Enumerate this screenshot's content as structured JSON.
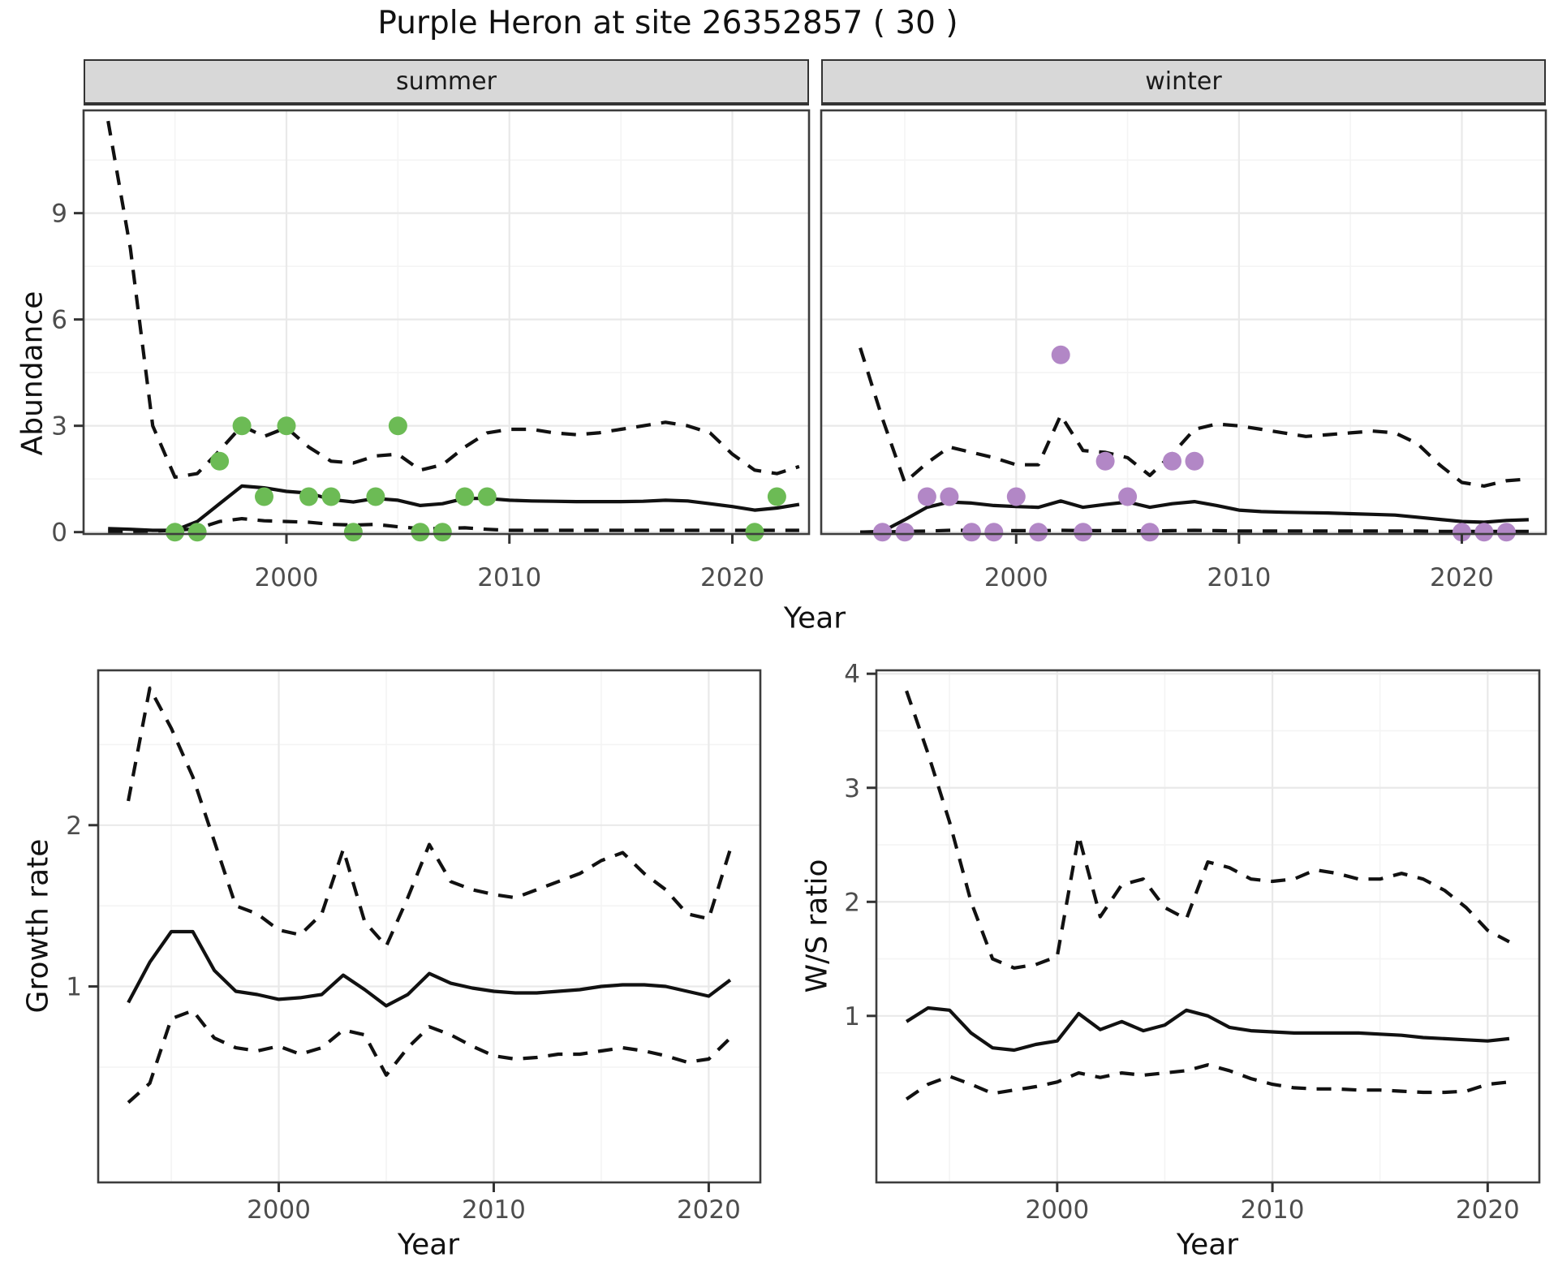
{
  "title": "Purple Heron at site 26352857 ( 30 )",
  "top_row": {
    "ylabel": "Abundance",
    "xlabel": "Year"
  },
  "colors": {
    "summer_points": "#6CBB55",
    "winter_points": "#B287C6",
    "trend_line": "#111111",
    "ci_line": "#111111",
    "strip_bg": "#d8d8d8",
    "grid_major": "#e9e9e9",
    "grid_minor": "#f4f4f4",
    "panel_border": "#3d3d3d",
    "tick_text": "#4d4d4d"
  },
  "chart_data": [
    {
      "id": "summer",
      "type": "line",
      "facet_label": "summer",
      "xlabel": "Year",
      "ylabel": "Abundance",
      "xlim": [
        1990.9,
        2023.44
      ],
      "ylim": [
        -0.053,
        11.9
      ],
      "x_ticks": [
        2000,
        2010,
        2020
      ],
      "x_minor": [
        1995,
        2005,
        2015
      ],
      "y_ticks": [
        0,
        3,
        6,
        9
      ],
      "y_minor": [
        1.5,
        4.5,
        7.5,
        10.5
      ],
      "show_y_labels": true,
      "series": [
        {
          "name": "upper_ci",
          "style": "dashed",
          "x": [
            1992,
            1993,
            1994,
            1995,
            1996,
            1997,
            1998,
            1999,
            2000,
            2001,
            2002,
            2003,
            2004,
            2005,
            2006,
            2007,
            2008,
            2009,
            2010,
            2011,
            2012,
            2013,
            2014,
            2015,
            2016,
            2017,
            2018,
            2019,
            2020,
            2021,
            2022,
            2023
          ],
          "y": [
            11.6,
            8.0,
            3.0,
            1.55,
            1.65,
            2.3,
            3.0,
            2.7,
            2.95,
            2.4,
            2.0,
            1.95,
            2.15,
            2.2,
            1.75,
            1.9,
            2.4,
            2.8,
            2.9,
            2.9,
            2.8,
            2.75,
            2.8,
            2.9,
            3.0,
            3.1,
            3.0,
            2.8,
            2.2,
            1.75,
            1.65,
            1.85
          ]
        },
        {
          "name": "trend",
          "style": "solid",
          "x": [
            1992,
            1993,
            1994,
            1995,
            1996,
            1997,
            1998,
            1999,
            2000,
            2001,
            2002,
            2003,
            2004,
            2005,
            2006,
            2007,
            2008,
            2009,
            2010,
            2011,
            2012,
            2013,
            2014,
            2015,
            2016,
            2017,
            2018,
            2019,
            2020,
            2021,
            2022,
            2023
          ],
          "y": [
            0.1,
            0.08,
            0.05,
            0.05,
            0.3,
            0.8,
            1.3,
            1.25,
            1.15,
            1.1,
            0.92,
            0.85,
            0.95,
            0.9,
            0.75,
            0.8,
            0.95,
            0.95,
            0.9,
            0.88,
            0.87,
            0.86,
            0.86,
            0.86,
            0.87,
            0.9,
            0.88,
            0.8,
            0.72,
            0.62,
            0.68,
            0.78
          ]
        },
        {
          "name": "lower_ci",
          "style": "dashed",
          "x": [
            1992,
            1993,
            1994,
            1995,
            1996,
            1997,
            1998,
            1999,
            2000,
            2001,
            2002,
            2003,
            2004,
            2005,
            2006,
            2007,
            2008,
            2009,
            2010,
            2011,
            2012,
            2013,
            2014,
            2015,
            2016,
            2017,
            2018,
            2019,
            2020,
            2021,
            2022,
            2023
          ],
          "y": [
            0.02,
            0.02,
            0.03,
            0.05,
            0.1,
            0.3,
            0.38,
            0.32,
            0.3,
            0.28,
            0.22,
            0.2,
            0.22,
            0.15,
            0.1,
            0.1,
            0.12,
            0.08,
            0.05,
            0.05,
            0.05,
            0.05,
            0.05,
            0.05,
            0.05,
            0.05,
            0.05,
            0.05,
            0.05,
            0.05,
            0.05,
            0.05
          ]
        }
      ],
      "points": {
        "color": "#6CBB55",
        "x": [
          1995,
          1996,
          1997,
          1998,
          1999,
          2000,
          2001,
          2002,
          2003,
          2004,
          2005,
          2006,
          2007,
          2008,
          2009,
          2021,
          2022
        ],
        "y": [
          0,
          0,
          2,
          3,
          1,
          3,
          1,
          1,
          0,
          1,
          3,
          0,
          0,
          1,
          1,
          0,
          1
        ]
      }
    },
    {
      "id": "winter",
      "type": "line",
      "facet_label": "winter",
      "xlabel": "Year",
      "ylabel": "Abundance",
      "xlim": [
        1991.25,
        2023.77
      ],
      "ylim": [
        -0.053,
        11.9
      ],
      "x_ticks": [
        2000,
        2010,
        2020
      ],
      "x_minor": [
        1995,
        2005,
        2015
      ],
      "y_ticks": [
        0,
        3,
        6,
        9
      ],
      "y_minor": [
        1.5,
        4.5,
        7.5,
        10.5
      ],
      "show_y_labels": false,
      "series": [
        {
          "name": "upper_ci",
          "style": "dashed",
          "x": [
            1993,
            1994,
            1995,
            1996,
            1997,
            1998,
            1999,
            2000,
            2001,
            2002,
            2003,
            2004,
            2005,
            2006,
            2007,
            2008,
            2009,
            2010,
            2011,
            2012,
            2013,
            2014,
            2015,
            2016,
            2017,
            2018,
            2019,
            2020,
            2021,
            2022,
            2023
          ],
          "y": [
            5.2,
            3.2,
            1.4,
            1.95,
            2.4,
            2.25,
            2.1,
            1.9,
            1.9,
            3.3,
            2.3,
            2.25,
            2.1,
            1.6,
            2.2,
            2.9,
            3.05,
            3.0,
            2.9,
            2.8,
            2.7,
            2.75,
            2.8,
            2.85,
            2.8,
            2.5,
            1.9,
            1.4,
            1.3,
            1.45,
            1.5
          ]
        },
        {
          "name": "trend",
          "style": "solid",
          "x": [
            1993,
            1994,
            1995,
            1996,
            1997,
            1998,
            1999,
            2000,
            2001,
            2002,
            2003,
            2004,
            2005,
            2006,
            2007,
            2008,
            2009,
            2010,
            2011,
            2012,
            2013,
            2014,
            2015,
            2016,
            2017,
            2018,
            2019,
            2020,
            2021,
            2022,
            2023
          ],
          "y": [
            0.0,
            0.02,
            0.35,
            0.7,
            0.85,
            0.82,
            0.75,
            0.72,
            0.7,
            0.88,
            0.7,
            0.78,
            0.85,
            0.7,
            0.8,
            0.86,
            0.75,
            0.62,
            0.58,
            0.56,
            0.55,
            0.54,
            0.52,
            0.5,
            0.48,
            0.42,
            0.36,
            0.3,
            0.28,
            0.33,
            0.35
          ]
        },
        {
          "name": "lower_ci",
          "style": "dashed",
          "x": [
            1993,
            1994,
            1995,
            1996,
            1997,
            1998,
            1999,
            2000,
            2001,
            2002,
            2003,
            2004,
            2005,
            2006,
            2007,
            2008,
            2009,
            2010,
            2011,
            2012,
            2013,
            2014,
            2015,
            2016,
            2017,
            2018,
            2019,
            2020,
            2021,
            2022,
            2023
          ],
          "y": [
            0.0,
            0.0,
            0.02,
            0.03,
            0.05,
            0.05,
            0.04,
            0.04,
            0.04,
            0.05,
            0.04,
            0.04,
            0.04,
            0.03,
            0.04,
            0.05,
            0.04,
            0.03,
            0.03,
            0.03,
            0.03,
            0.03,
            0.03,
            0.03,
            0.03,
            0.03,
            0.02,
            0.02,
            0.02,
            0.02,
            0.02
          ]
        }
      ],
      "points": {
        "color": "#B287C6",
        "x": [
          1994,
          1995,
          1996,
          1997,
          1998,
          1999,
          2000,
          2001,
          2002,
          2003,
          2004,
          2005,
          2006,
          2007,
          2008,
          2020,
          2021,
          2022
        ],
        "y": [
          0,
          0,
          1,
          1,
          0,
          0,
          1,
          0,
          5,
          0,
          2,
          1,
          0,
          2,
          2,
          0,
          0,
          0
        ]
      }
    },
    {
      "id": "growth",
      "type": "line",
      "facet_label": "",
      "xlabel": "Year",
      "ylabel": "Growth rate",
      "xlim": [
        1991.6,
        2022.4
      ],
      "ylim": [
        -0.215,
        2.96
      ],
      "x_ticks": [
        2000,
        2010,
        2020
      ],
      "x_minor": [
        1995,
        2005,
        2015
      ],
      "y_ticks": [
        1,
        2
      ],
      "y_minor": [
        0.5,
        1.5,
        2.5
      ],
      "show_y_labels": true,
      "series": [
        {
          "name": "upper_ci",
          "style": "dashed",
          "x": [
            1993,
            1994,
            1995,
            1996,
            1997,
            1998,
            1999,
            2000,
            2001,
            2002,
            2003,
            2004,
            2005,
            2006,
            2007,
            2008,
            2009,
            2010,
            2011,
            2012,
            2013,
            2014,
            2015,
            2016,
            2017,
            2018,
            2019,
            2020,
            2021
          ],
          "y": [
            2.15,
            2.85,
            2.6,
            2.3,
            1.9,
            1.5,
            1.45,
            1.35,
            1.32,
            1.45,
            1.85,
            1.4,
            1.25,
            1.55,
            1.88,
            1.65,
            1.6,
            1.57,
            1.55,
            1.6,
            1.65,
            1.7,
            1.78,
            1.83,
            1.7,
            1.6,
            1.45,
            1.42,
            1.85
          ]
        },
        {
          "name": "trend",
          "style": "solid",
          "x": [
            1993,
            1994,
            1995,
            1996,
            1997,
            1998,
            1999,
            2000,
            2001,
            2002,
            2003,
            2004,
            2005,
            2006,
            2007,
            2008,
            2009,
            2010,
            2011,
            2012,
            2013,
            2014,
            2015,
            2016,
            2017,
            2018,
            2019,
            2020,
            2021
          ],
          "y": [
            0.9,
            1.15,
            1.34,
            1.34,
            1.1,
            0.97,
            0.95,
            0.92,
            0.93,
            0.95,
            1.07,
            0.98,
            0.88,
            0.95,
            1.08,
            1.02,
            0.99,
            0.97,
            0.96,
            0.96,
            0.97,
            0.98,
            1.0,
            1.01,
            1.01,
            1.0,
            0.97,
            0.94,
            1.04
          ]
        },
        {
          "name": "lower_ci",
          "style": "dashed",
          "x": [
            1993,
            1994,
            1995,
            1996,
            1997,
            1998,
            1999,
            2000,
            2001,
            2002,
            2003,
            2004,
            2005,
            2006,
            2007,
            2008,
            2009,
            2010,
            2011,
            2012,
            2013,
            2014,
            2015,
            2016,
            2017,
            2018,
            2019,
            2020,
            2021
          ],
          "y": [
            0.28,
            0.4,
            0.8,
            0.85,
            0.68,
            0.62,
            0.6,
            0.63,
            0.58,
            0.62,
            0.73,
            0.7,
            0.45,
            0.62,
            0.75,
            0.7,
            0.63,
            0.57,
            0.55,
            0.56,
            0.58,
            0.58,
            0.6,
            0.62,
            0.6,
            0.57,
            0.53,
            0.55,
            0.68
          ]
        }
      ]
    },
    {
      "id": "ws_ratio",
      "type": "line",
      "facet_label": "",
      "xlabel": "Year",
      "ylabel": "W/S ratio",
      "xlim": [
        1991.6,
        2022.4
      ],
      "ylim": [
        -0.46,
        4.03
      ],
      "x_ticks": [
        2000,
        2010,
        2020
      ],
      "x_minor": [
        1995,
        2005,
        2015
      ],
      "y_ticks": [
        1,
        2,
        3,
        4
      ],
      "y_minor": [
        0.5,
        1.5,
        2.5,
        3.5
      ],
      "show_y_labels": true,
      "series": [
        {
          "name": "upper_ci",
          "style": "dashed",
          "x": [
            1993,
            1994,
            1995,
            1996,
            1997,
            1998,
            1999,
            2000,
            2001,
            2002,
            2003,
            2004,
            2005,
            2006,
            2007,
            2008,
            2009,
            2010,
            2011,
            2012,
            2013,
            2014,
            2015,
            2016,
            2017,
            2018,
            2019,
            2020,
            2021
          ],
          "y": [
            3.85,
            3.3,
            2.7,
            2.0,
            1.5,
            1.42,
            1.45,
            1.52,
            2.58,
            1.87,
            2.15,
            2.2,
            1.95,
            1.85,
            2.35,
            2.3,
            2.2,
            2.18,
            2.2,
            2.28,
            2.25,
            2.2,
            2.2,
            2.25,
            2.2,
            2.1,
            1.95,
            1.75,
            1.65
          ]
        },
        {
          "name": "trend",
          "style": "solid",
          "x": [
            1993,
            1994,
            1995,
            1996,
            1997,
            1998,
            1999,
            2000,
            2001,
            2002,
            2003,
            2004,
            2005,
            2006,
            2007,
            2008,
            2009,
            2010,
            2011,
            2012,
            2013,
            2014,
            2015,
            2016,
            2017,
            2018,
            2019,
            2020,
            2021
          ],
          "y": [
            0.95,
            1.07,
            1.05,
            0.85,
            0.72,
            0.7,
            0.75,
            0.78,
            1.02,
            0.88,
            0.95,
            0.87,
            0.92,
            1.05,
            1.0,
            0.9,
            0.87,
            0.86,
            0.85,
            0.85,
            0.85,
            0.85,
            0.84,
            0.83,
            0.81,
            0.8,
            0.79,
            0.78,
            0.8
          ]
        },
        {
          "name": "lower_ci",
          "style": "dashed",
          "x": [
            1993,
            1994,
            1995,
            1996,
            1997,
            1998,
            1999,
            2000,
            2001,
            2002,
            2003,
            2004,
            2005,
            2006,
            2007,
            2008,
            2009,
            2010,
            2011,
            2012,
            2013,
            2014,
            2015,
            2016,
            2017,
            2018,
            2019,
            2020,
            2021
          ],
          "y": [
            0.27,
            0.4,
            0.47,
            0.4,
            0.32,
            0.35,
            0.38,
            0.42,
            0.5,
            0.46,
            0.5,
            0.48,
            0.5,
            0.52,
            0.57,
            0.52,
            0.45,
            0.4,
            0.37,
            0.36,
            0.36,
            0.35,
            0.35,
            0.34,
            0.33,
            0.33,
            0.34,
            0.4,
            0.42
          ]
        }
      ]
    }
  ]
}
